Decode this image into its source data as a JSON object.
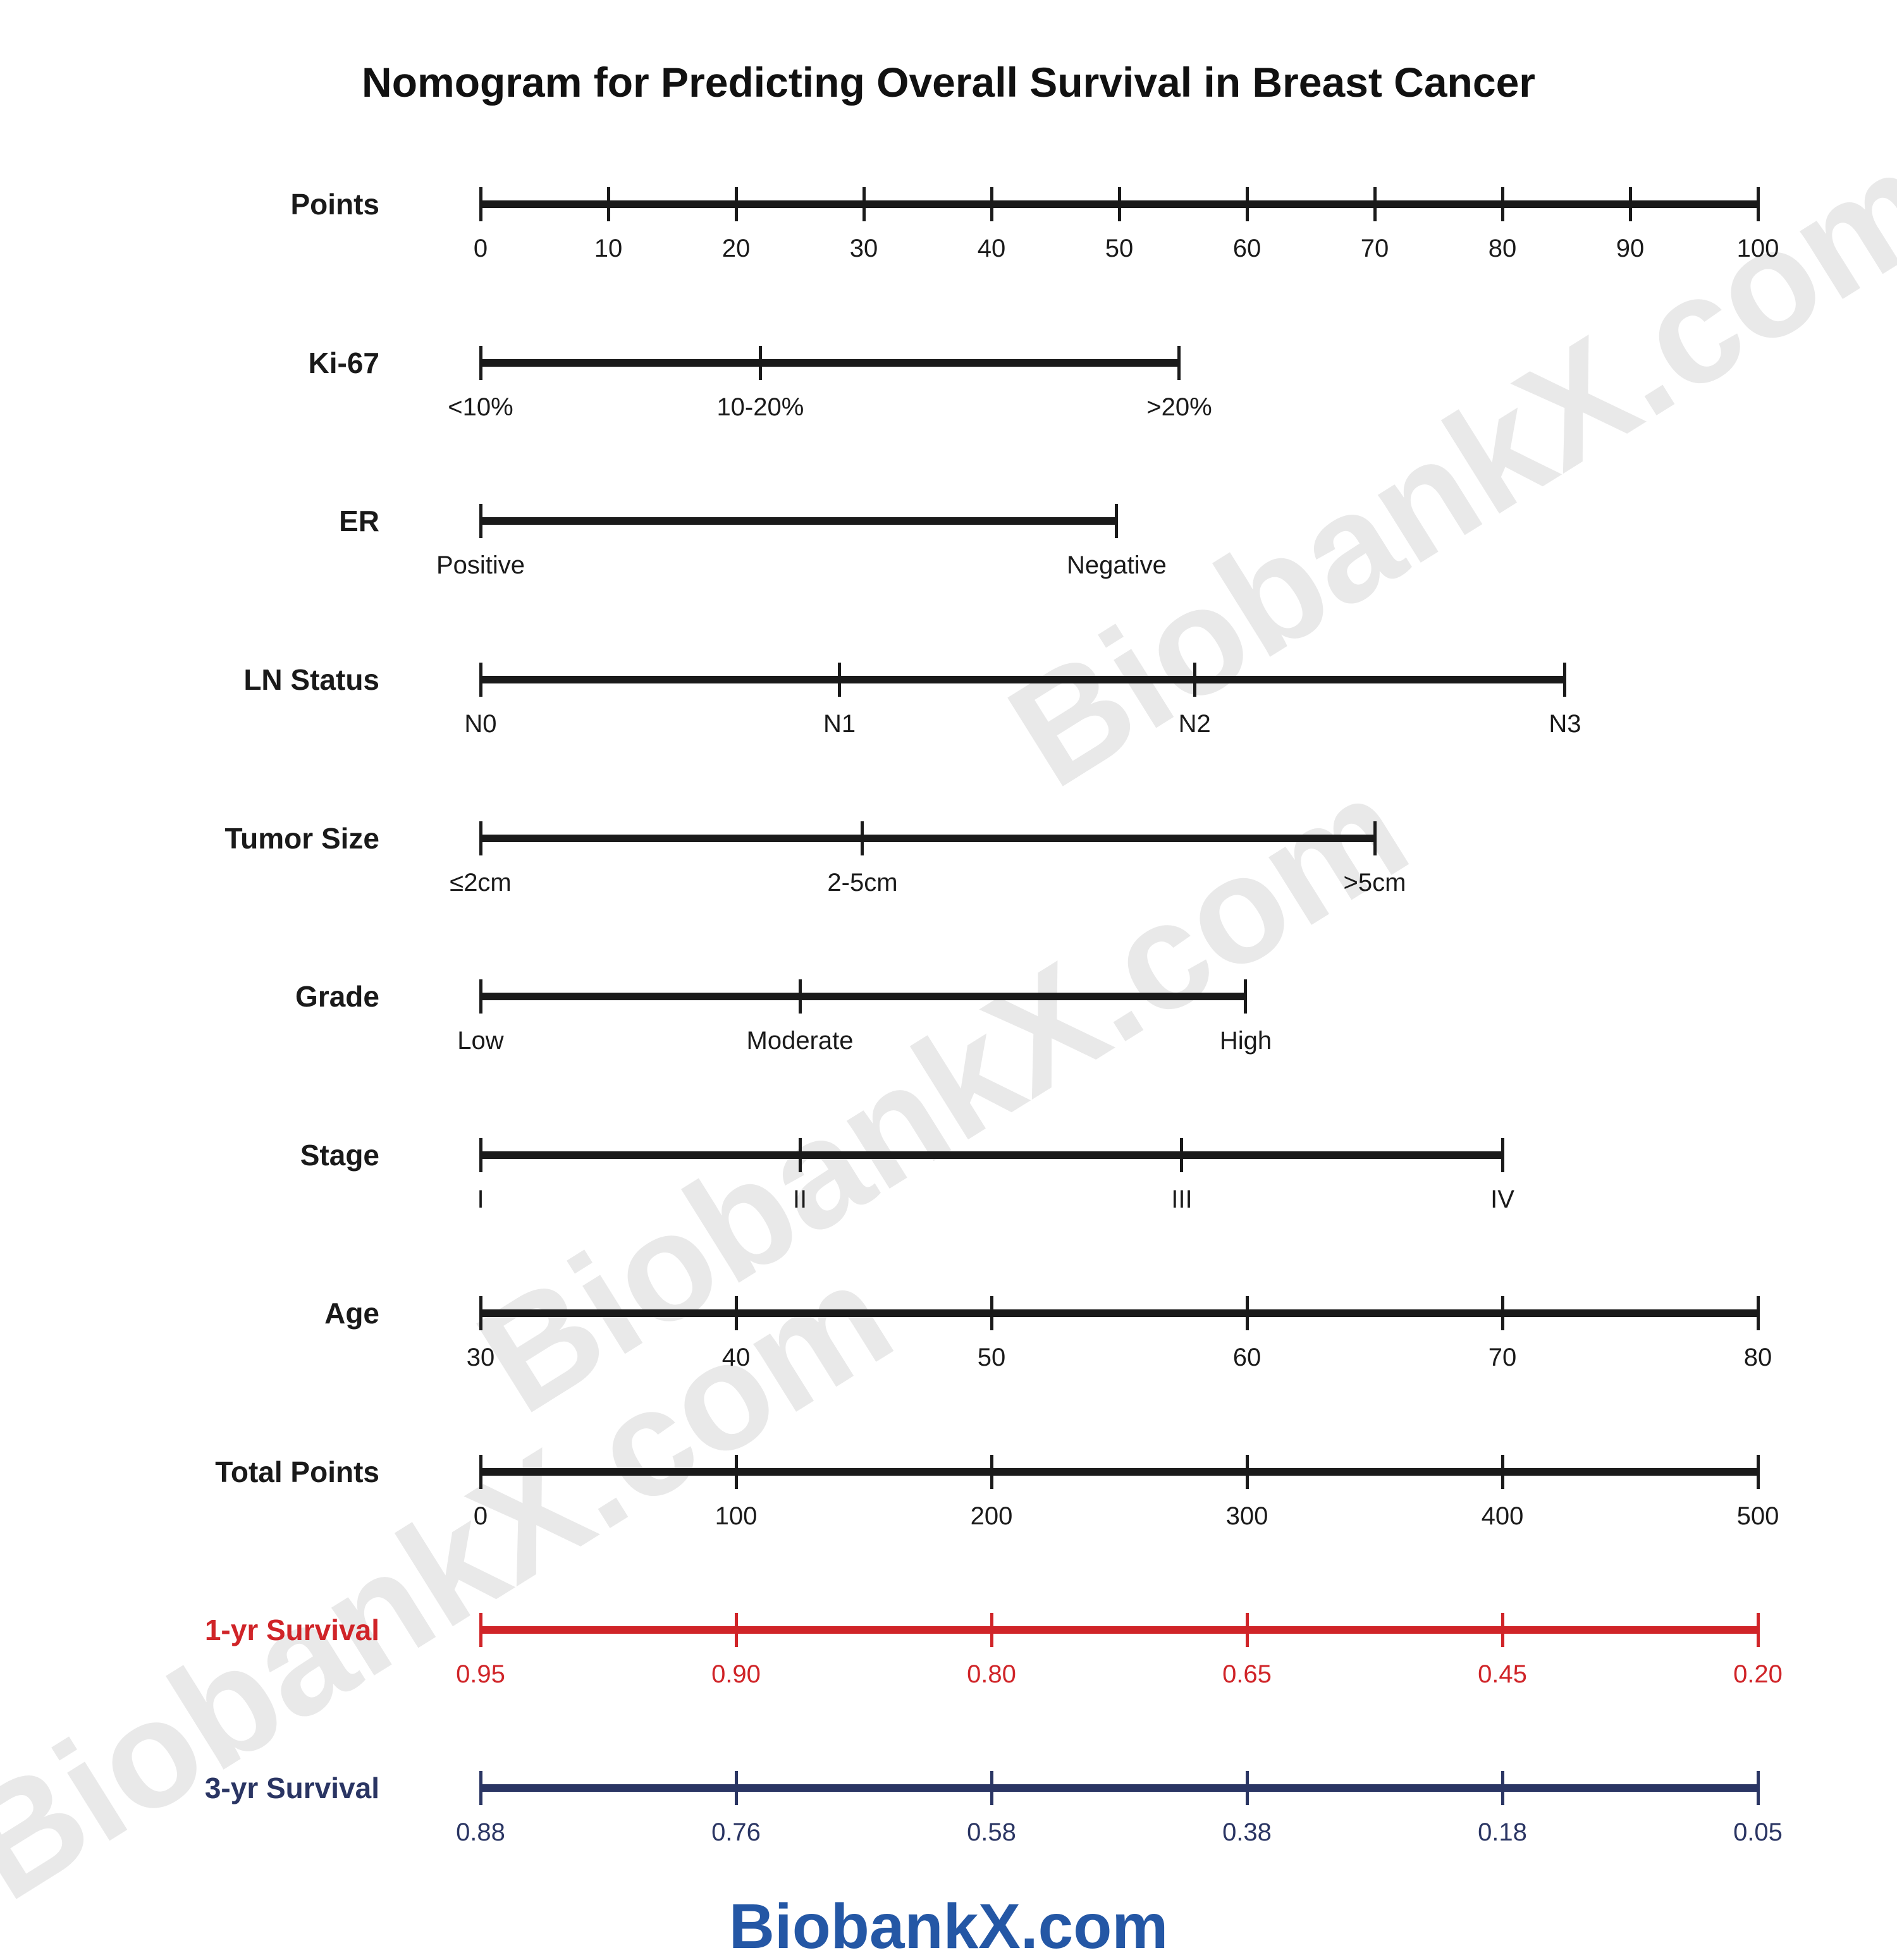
{
  "title": "Nomogram for Predicting Overall Survival in Breast Cancer",
  "brand": {
    "text": "BiobankX.com",
    "color": "#2457a5"
  },
  "watermark": {
    "text": "BiobankX.com",
    "color": "#e9e9e9"
  },
  "chart_data": {
    "type": "nomogram",
    "title": "Nomogram for Predicting Overall Survival in Breast Cancer",
    "points_axis_range": [
      0,
      100
    ],
    "total_points_axis_range": [
      0,
      500
    ],
    "axes": [
      {
        "label": "Points",
        "color": "#1a1a1a",
        "ticks": [
          {
            "x": 0.0,
            "label": "0"
          },
          {
            "x": 0.1,
            "label": "10"
          },
          {
            "x": 0.2,
            "label": "20"
          },
          {
            "x": 0.3,
            "label": "30"
          },
          {
            "x": 0.4,
            "label": "40"
          },
          {
            "x": 0.5,
            "label": "50"
          },
          {
            "x": 0.6,
            "label": "60"
          },
          {
            "x": 0.7,
            "label": "70"
          },
          {
            "x": 0.8,
            "label": "80"
          },
          {
            "x": 0.9,
            "label": "90"
          },
          {
            "x": 1.0,
            "label": "100"
          }
        ]
      },
      {
        "label": "Ki-67",
        "color": "#1a1a1a",
        "ticks": [
          {
            "x": 0.0,
            "label": "<10%",
            "points": 0
          },
          {
            "x": 0.219,
            "label": "10-20%",
            "points": 22
          },
          {
            "x": 0.547,
            "label": ">20%",
            "points": 55
          }
        ]
      },
      {
        "label": "ER",
        "color": "#1a1a1a",
        "ticks": [
          {
            "x": 0.0,
            "label": "Positive",
            "points": 0
          },
          {
            "x": 0.498,
            "label": "Negative",
            "points": 50
          }
        ]
      },
      {
        "label": "LN Status",
        "color": "#1a1a1a",
        "ticks": [
          {
            "x": 0.0,
            "label": "N0",
            "points": 0
          },
          {
            "x": 0.281,
            "label": "N1",
            "points": 28
          },
          {
            "x": 0.559,
            "label": "N2",
            "points": 56
          },
          {
            "x": 0.849,
            "label": "N3",
            "points": 85
          }
        ]
      },
      {
        "label": "Tumor Size",
        "color": "#1a1a1a",
        "ticks": [
          {
            "x": 0.0,
            "label": "≤2cm",
            "points": 0
          },
          {
            "x": 0.299,
            "label": "2-5cm",
            "points": 30
          },
          {
            "x": 0.7,
            "label": ">5cm",
            "points": 70
          }
        ]
      },
      {
        "label": "Grade",
        "color": "#1a1a1a",
        "ticks": [
          {
            "x": 0.0,
            "label": "Low",
            "points": 0
          },
          {
            "x": 0.25,
            "label": "Moderate",
            "points": 25
          },
          {
            "x": 0.599,
            "label": "High",
            "points": 60
          }
        ]
      },
      {
        "label": "Stage",
        "color": "#1a1a1a",
        "ticks": [
          {
            "x": 0.0,
            "label": "I",
            "points": 0
          },
          {
            "x": 0.25,
            "label": "II",
            "points": 25
          },
          {
            "x": 0.549,
            "label": "III",
            "points": 55
          },
          {
            "x": 0.8,
            "label": "IV",
            "points": 80
          }
        ]
      },
      {
        "label": "Age",
        "color": "#1a1a1a",
        "ticks": [
          {
            "x": 0.0,
            "label": "30"
          },
          {
            "x": 0.2,
            "label": "40"
          },
          {
            "x": 0.4,
            "label": "50"
          },
          {
            "x": 0.6,
            "label": "60"
          },
          {
            "x": 0.8,
            "label": "70"
          },
          {
            "x": 1.0,
            "label": "80"
          }
        ]
      },
      {
        "label": "Total Points",
        "color": "#1a1a1a",
        "ticks": [
          {
            "x": 0.0,
            "label": "0"
          },
          {
            "x": 0.2,
            "label": "100"
          },
          {
            "x": 0.4,
            "label": "200"
          },
          {
            "x": 0.6,
            "label": "300"
          },
          {
            "x": 0.8,
            "label": "400"
          },
          {
            "x": 1.0,
            "label": "500"
          }
        ]
      },
      {
        "label": "1-yr Survival",
        "color": "#d02428",
        "ticks": [
          {
            "x": 0.0,
            "label": "0.95"
          },
          {
            "x": 0.2,
            "label": "0.90"
          },
          {
            "x": 0.4,
            "label": "0.80"
          },
          {
            "x": 0.6,
            "label": "0.65"
          },
          {
            "x": 0.8,
            "label": "0.45"
          },
          {
            "x": 1.0,
            "label": "0.20"
          }
        ]
      },
      {
        "label": "3-yr Survival",
        "color": "#2a3563",
        "ticks": [
          {
            "x": 0.0,
            "label": "0.88"
          },
          {
            "x": 0.2,
            "label": "0.76"
          },
          {
            "x": 0.4,
            "label": "0.58"
          },
          {
            "x": 0.6,
            "label": "0.38"
          },
          {
            "x": 0.8,
            "label": "0.18"
          },
          {
            "x": 1.0,
            "label": "0.05"
          }
        ]
      }
    ]
  }
}
